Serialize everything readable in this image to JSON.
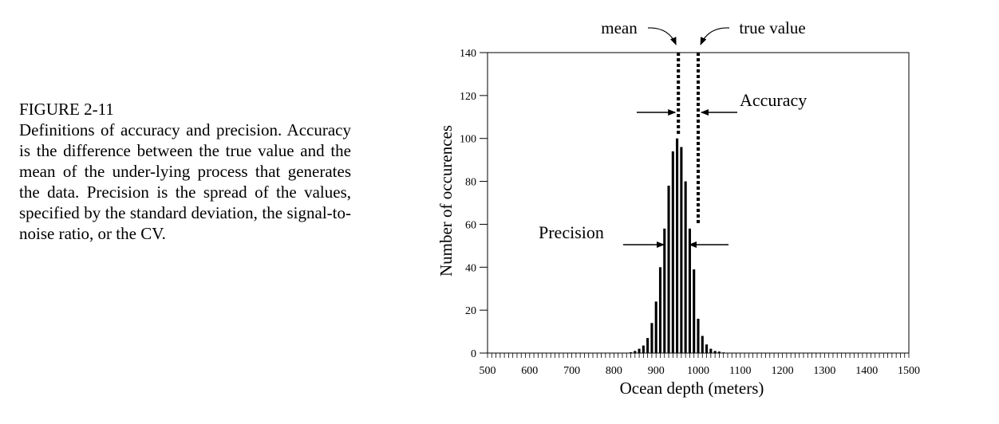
{
  "caption": {
    "figure_label": "FIGURE 2-11",
    "text": "Definitions of accuracy and precision. Accuracy is the difference between the true value and the mean of the under-lying process that generates the data. Precision is the spread of the values, specified by the standard deviation, the signal-to-noise ratio, or the CV."
  },
  "chart_data": {
    "type": "bar",
    "title": "",
    "xlabel": "Ocean depth (meters)",
    "ylabel": "Number of occurences",
    "xlim": [
      500,
      1500
    ],
    "ylim": [
      0,
      140
    ],
    "x_ticks": [
      500,
      600,
      700,
      800,
      900,
      1000,
      1100,
      1200,
      1300,
      1400,
      1500
    ],
    "y_ticks": [
      0,
      20,
      40,
      60,
      80,
      100,
      120,
      140
    ],
    "x_minor_step": 10,
    "grid": false,
    "bins": [
      840,
      850,
      860,
      870,
      880,
      890,
      900,
      910,
      920,
      930,
      940,
      950,
      960,
      970,
      980,
      990,
      1000,
      1010,
      1020,
      1030,
      1040,
      1050,
      1060,
      1070
    ],
    "values": [
      0.4,
      1,
      2,
      3.5,
      7,
      14,
      24,
      40,
      58,
      78,
      94,
      100,
      96,
      80,
      58,
      39,
      16,
      8,
      4,
      2,
      1,
      0.7,
      0.3,
      0.1
    ],
    "mean": 953,
    "true_value": 1000,
    "annotations": {
      "mean_label": "mean",
      "true_value_label": "true value",
      "accuracy_label": "Accuracy",
      "precision_label": "Precision"
    }
  }
}
